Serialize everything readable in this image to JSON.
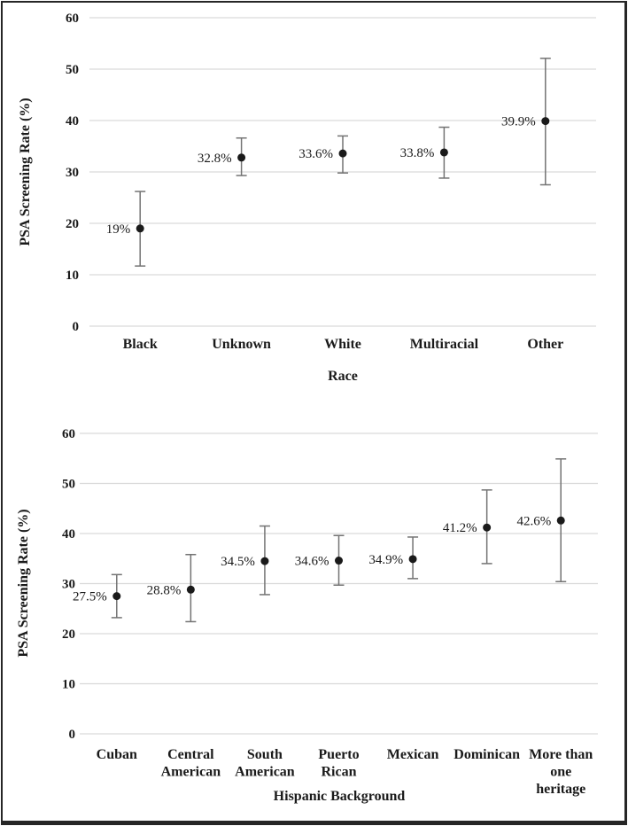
{
  "figure": {
    "description": "Two stacked point-estimate charts with 95% confidence interval error bars showing PSA screening rates",
    "border_color": "#262626",
    "background": "#ffffff"
  },
  "colors": {
    "marker": "#1a1a1a",
    "error_bar": "#737373",
    "gridline": "#d9d9d9",
    "text_color": "#1a1a1a"
  },
  "chart_data": [
    {
      "type": "scatter",
      "subtype": "point-estimate-with-error-bars",
      "title": "",
      "xlabel": "Race",
      "ylabel": "PSA Screening Rate (%)",
      "ylim": [
        0,
        60
      ],
      "yticks": [
        0,
        10,
        20,
        30,
        40,
        50,
        60
      ],
      "grid": true,
      "legend": false,
      "categories": [
        "Black",
        "Unknown",
        "White",
        "Multiracial",
        "Other"
      ],
      "category_label_lines": [
        [
          "Black"
        ],
        [
          "Unknown"
        ],
        [
          "White"
        ],
        [
          "Multiracial"
        ],
        [
          "Other"
        ]
      ],
      "values": [
        19,
        32.8,
        33.6,
        33.8,
        39.9
      ],
      "value_labels": [
        "19%",
        "32.8%",
        "33.6%",
        "33.8%",
        "39.9%"
      ],
      "ci_low": [
        11.7,
        29.3,
        29.8,
        28.8,
        27.5
      ],
      "ci_high": [
        26.2,
        36.6,
        37.0,
        38.7,
        52.1
      ]
    },
    {
      "type": "scatter",
      "subtype": "point-estimate-with-error-bars",
      "title": "",
      "xlabel": "Hispanic Background",
      "ylabel": "PSA Screening Rate (%)",
      "ylim": [
        0,
        60
      ],
      "yticks": [
        0,
        10,
        20,
        30,
        40,
        50,
        60
      ],
      "grid": true,
      "legend": false,
      "categories": [
        "Cuban",
        "Central American",
        "South American",
        "Puerto Rican",
        "Mexican",
        "Dominican",
        "More than one heritage"
      ],
      "category_label_lines": [
        [
          "Cuban"
        ],
        [
          "Central",
          "American"
        ],
        [
          "South",
          "American"
        ],
        [
          "Puerto",
          "Rican"
        ],
        [
          "Mexican"
        ],
        [
          "Dominican"
        ],
        [
          "More than",
          "one",
          "heritage"
        ]
      ],
      "values": [
        27.5,
        28.8,
        34.5,
        34.6,
        34.9,
        41.2,
        42.6
      ],
      "value_labels": [
        "27.5%",
        "28.8%",
        "34.5%",
        "34.6%",
        "34.9%",
        "41.2%",
        "42.6%"
      ],
      "ci_low": [
        23.2,
        22.4,
        27.8,
        29.7,
        31.0,
        34.0,
        30.4
      ],
      "ci_high": [
        31.8,
        35.8,
        41.5,
        39.6,
        39.3,
        48.7,
        54.9
      ]
    }
  ]
}
